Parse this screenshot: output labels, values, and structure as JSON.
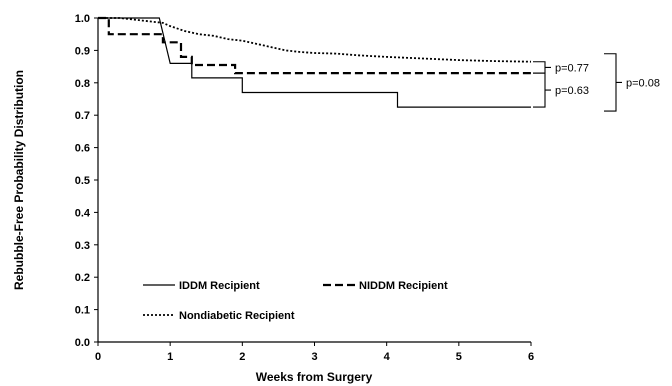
{
  "chart_data": {
    "type": "line",
    "step": true,
    "title": "",
    "xlabel": "Weeks from Surgery",
    "ylabel": "Rebubble-Free Probability Distribution",
    "xlim": [
      0,
      6
    ],
    "ylim": [
      0,
      1.0
    ],
    "xticks": [
      "0",
      "1",
      "2",
      "3",
      "4",
      "5",
      "6"
    ],
    "yticks": [
      "0.0",
      "0.1",
      "0.2",
      "0.3",
      "0.4",
      "0.5",
      "0.6",
      "0.7",
      "0.8",
      "0.9",
      "1.0"
    ],
    "grid": false,
    "legend_position": "bottom-left",
    "series": [
      {
        "name": "IDDM Recipient",
        "line_style": "solid",
        "points": [
          [
            0,
            1.0
          ],
          [
            0.85,
            1.0
          ],
          [
            1.0,
            0.86
          ],
          [
            1.3,
            0.86
          ],
          [
            1.3,
            0.815
          ],
          [
            2.0,
            0.815
          ],
          [
            2.0,
            0.77
          ],
          [
            4.15,
            0.77
          ],
          [
            4.15,
            0.725
          ],
          [
            6.0,
            0.725
          ]
        ]
      },
      {
        "name": "NIDDM Recipient",
        "line_style": "dashed",
        "points": [
          [
            0,
            1.0
          ],
          [
            0.15,
            1.0
          ],
          [
            0.15,
            0.95
          ],
          [
            0.9,
            0.95
          ],
          [
            0.9,
            0.925
          ],
          [
            1.15,
            0.925
          ],
          [
            1.15,
            0.88
          ],
          [
            1.3,
            0.88
          ],
          [
            1.3,
            0.855
          ],
          [
            1.9,
            0.855
          ],
          [
            1.9,
            0.83
          ],
          [
            6.0,
            0.83
          ]
        ]
      },
      {
        "name": "Nondiabetic Recipient",
        "line_style": "dotted",
        "points": [
          [
            0,
            1.0
          ],
          [
            0.3,
            1.0
          ],
          [
            0.5,
            0.995
          ],
          [
            0.9,
            0.985
          ],
          [
            1.0,
            0.975
          ],
          [
            1.2,
            0.96
          ],
          [
            1.4,
            0.95
          ],
          [
            1.6,
            0.945
          ],
          [
            1.8,
            0.935
          ],
          [
            2.0,
            0.93
          ],
          [
            2.3,
            0.915
          ],
          [
            2.6,
            0.9
          ],
          [
            2.8,
            0.895
          ],
          [
            3.0,
            0.892
          ],
          [
            3.3,
            0.89
          ],
          [
            3.6,
            0.885
          ],
          [
            4.0,
            0.88
          ],
          [
            4.5,
            0.875
          ],
          [
            5.0,
            0.87
          ],
          [
            5.5,
            0.867
          ],
          [
            6.0,
            0.865
          ]
        ]
      }
    ],
    "annotations": [
      {
        "text": "p=0.77",
        "between": [
          "Nondiabetic Recipient",
          "NIDDM Recipient"
        ]
      },
      {
        "text": "p=0.63",
        "between": [
          "NIDDM Recipient",
          "IDDM Recipient"
        ]
      },
      {
        "text": "p=0.08",
        "between": [
          "Nondiabetic Recipient",
          "IDDM Recipient"
        ]
      }
    ]
  }
}
